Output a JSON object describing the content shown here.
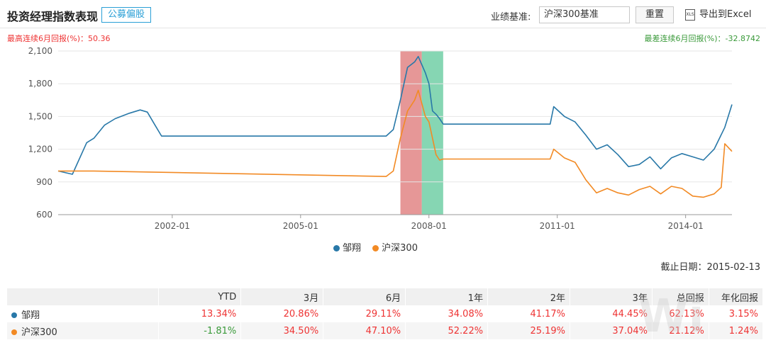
{
  "header": {
    "title": "投资经理指数表现",
    "tag": "公募偏股",
    "benchmark_label": "业绩基准:",
    "benchmark_value": "沪深300基准",
    "reset_label": "重置",
    "export_label": "导出到Excel",
    "export_icon": "xls-file-icon"
  },
  "stats": {
    "best": "最高连续6月回报(%)：50.36",
    "worst": "最差连续6月回报(%)：-32.8742"
  },
  "colors": {
    "manager": "#2878a8",
    "index": "#f28a24",
    "best_band": "#d96060",
    "worst_band": "#45c08a",
    "positive": "#e33333",
    "negative": "#3a9a3a"
  },
  "chart_data": {
    "type": "line",
    "x_ticks": [
      "2002-01",
      "2005-01",
      "2008-01",
      "2011-01",
      "2014-01"
    ],
    "y_ticks": [
      "600",
      "900",
      "1,200",
      "1,500",
      "1,800",
      "2,100"
    ],
    "ylim": [
      600,
      2100
    ],
    "xlim": [
      "1999-05",
      "2015-02"
    ],
    "highlight_bands": [
      {
        "kind": "best",
        "start": "2007-05",
        "end": "2007-11"
      },
      {
        "kind": "worst",
        "start": "2007-11",
        "end": "2008-05"
      }
    ],
    "series": [
      {
        "name": "邹翔",
        "x": [
          "1999-05",
          "1999-09",
          "2000-01",
          "2000-03",
          "2000-06",
          "2000-09",
          "2001-01",
          "2001-04",
          "2001-06",
          "2001-08",
          "2001-10",
          "2007-01",
          "2007-03",
          "2007-05",
          "2007-07",
          "2007-09",
          "2007-10",
          "2007-12",
          "2008-01",
          "2008-02",
          "2008-03",
          "2008-04",
          "2008-05",
          "2008-06",
          "2010-11",
          "2010-12",
          "2011-03",
          "2011-06",
          "2011-09",
          "2011-12",
          "2012-03",
          "2012-06",
          "2012-09",
          "2012-12",
          "2013-03",
          "2013-06",
          "2013-09",
          "2013-12",
          "2014-03",
          "2014-06",
          "2014-09",
          "2014-12",
          "2015-02"
        ],
        "values": [
          1000,
          970,
          1260,
          1300,
          1420,
          1480,
          1530,
          1560,
          1540,
          1430,
          1320,
          1320,
          1380,
          1650,
          1950,
          2000,
          2050,
          1900,
          1800,
          1550,
          1520,
          1480,
          1430,
          1430,
          1430,
          1590,
          1500,
          1450,
          1330,
          1200,
          1240,
          1150,
          1040,
          1060,
          1130,
          1020,
          1120,
          1160,
          1130,
          1100,
          1200,
          1400,
          1610
        ]
      },
      {
        "name": "沪深300",
        "x": [
          "1999-05",
          "2000-03",
          "2007-01",
          "2007-03",
          "2007-05",
          "2007-07",
          "2007-09",
          "2007-10",
          "2007-12",
          "2008-01",
          "2008-02",
          "2008-03",
          "2008-04",
          "2008-05",
          "2008-06",
          "2010-11",
          "2010-12",
          "2011-03",
          "2011-06",
          "2011-09",
          "2011-12",
          "2012-03",
          "2012-06",
          "2012-09",
          "2012-12",
          "2013-03",
          "2013-06",
          "2013-09",
          "2013-12",
          "2014-03",
          "2014-06",
          "2014-09",
          "2014-11",
          "2014-12",
          "2015-02"
        ],
        "values": [
          1000,
          1000,
          950,
          1000,
          1300,
          1550,
          1650,
          1740,
          1500,
          1450,
          1300,
          1150,
          1100,
          1110,
          1110,
          1110,
          1200,
          1120,
          1080,
          920,
          800,
          840,
          800,
          780,
          830,
          860,
          790,
          860,
          840,
          770,
          760,
          790,
          850,
          1250,
          1180
        ]
      }
    ]
  },
  "legend": {
    "items": [
      "邹翔",
      "沪深300"
    ]
  },
  "deadline": "截止日期：2015-02-13",
  "table": {
    "headers": [
      "",
      "YTD",
      "3月",
      "6月",
      "1年",
      "2年",
      "3年",
      "总回报",
      "年化回报"
    ],
    "rows": [
      {
        "name": "邹翔",
        "values": [
          "13.34%",
          "20.86%",
          "29.11%",
          "34.08%",
          "41.17%",
          "44.45%",
          "62.13%",
          "3.15%"
        ]
      },
      {
        "name": "沪深300",
        "values": [
          "-1.81%",
          "34.50%",
          "47.10%",
          "52.22%",
          "25.19%",
          "37.04%",
          "21.12%",
          "1.24%"
        ]
      }
    ]
  }
}
